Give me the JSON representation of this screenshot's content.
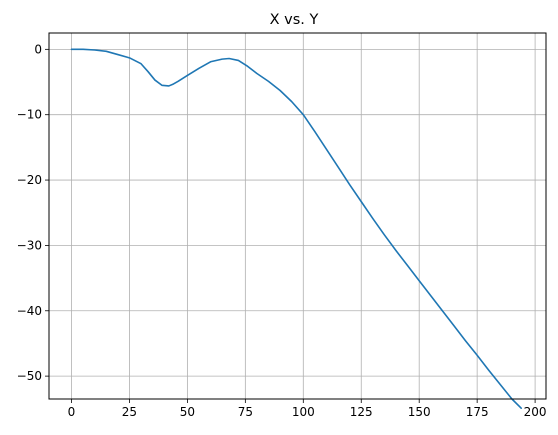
{
  "colors": {
    "series": "#1f77b4",
    "grid": "#b0b0b0",
    "axis": "#000000",
    "background": "#ffffff"
  },
  "chart_data": {
    "type": "line",
    "title": "X vs. Y",
    "xlabel": "",
    "ylabel": "",
    "xlim": [
      -9.7,
      204.7
    ],
    "ylim": [
      -53.5,
      2.5
    ],
    "xticks": [
      0,
      25,
      50,
      75,
      100,
      125,
      150,
      175,
      200
    ],
    "yticks": [
      0,
      -10,
      -20,
      -30,
      -40,
      -50
    ],
    "xtick_labels": [
      "0",
      "25",
      "50",
      "75",
      "100",
      "125",
      "150",
      "175",
      "200"
    ],
    "ytick_labels": [
      "0",
      "−10",
      "−20",
      "−30",
      "−40",
      "−50"
    ],
    "grid": true,
    "legend": "none",
    "series": [
      {
        "x": [
          0,
          5,
          10,
          15,
          20,
          25,
          30,
          33,
          36,
          39,
          42,
          44,
          46,
          50,
          55,
          60,
          65,
          68,
          72,
          76,
          80,
          85,
          90,
          95,
          100,
          105,
          110,
          115,
          120,
          125,
          130,
          135,
          140,
          145,
          150,
          155,
          160,
          165,
          170,
          175,
          180,
          185,
          190,
          194
        ],
        "y": [
          0,
          0,
          -0.1,
          -0.3,
          -0.8,
          -1.3,
          -2.2,
          -3.4,
          -4.7,
          -5.5,
          -5.6,
          -5.3,
          -4.9,
          -4.0,
          -2.9,
          -1.9,
          -1.5,
          -1.4,
          -1.7,
          -2.6,
          -3.7,
          -4.9,
          -6.3,
          -8.0,
          -10.0,
          -12.6,
          -15.3,
          -18.0,
          -20.7,
          -23.3,
          -25.9,
          -28.4,
          -30.8,
          -33.1,
          -35.4,
          -37.7,
          -40.0,
          -42.3,
          -44.6,
          -46.8,
          -49.1,
          -51.3,
          -53.5,
          -54.9
        ]
      }
    ]
  }
}
